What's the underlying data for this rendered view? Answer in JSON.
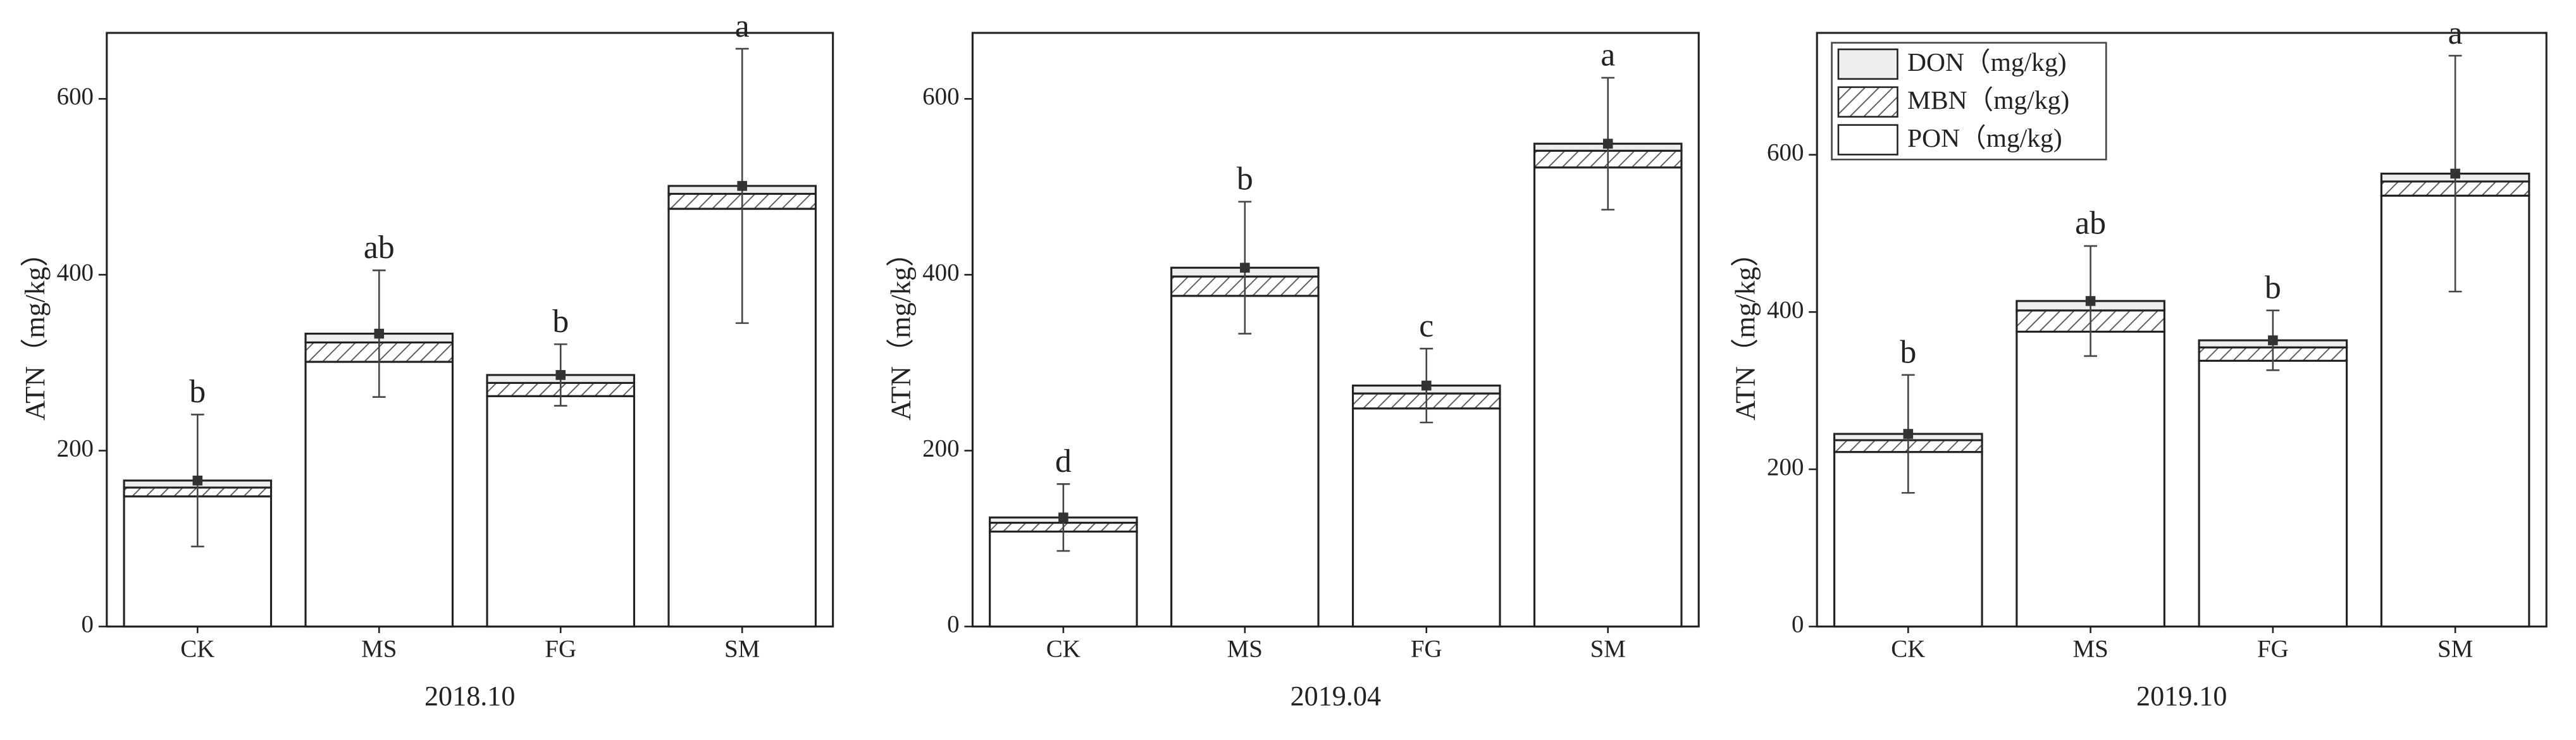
{
  "chart_data": [
    {
      "type": "bar",
      "stacked": true,
      "xlabel": "2018.10",
      "ylabel": "ATN（mg/kg）",
      "categories": [
        "CK",
        "MS",
        "FG",
        "SM"
      ],
      "series": [
        {
          "color": "#ffffff",
          "values": [
            148,
            301,
            262,
            475
          ]
        },
        {
          "color": "#555555",
          "pattern": "hatch",
          "values": [
            10,
            22,
            15,
            17
          ]
        },
        {
          "color": "#eeeeee",
          "values": [
            8,
            10,
            9,
            9
          ]
        }
      ],
      "errors": [
        75,
        72,
        35,
        156
      ],
      "annotations": [
        "b",
        "ab",
        "b",
        "a"
      ],
      "ylim": [
        0,
        675
      ],
      "yticks": [
        0,
        200,
        400,
        600
      ]
    },
    {
      "type": "bar",
      "stacked": true,
      "xlabel": "2019.04",
      "ylabel": "ATN（mg/kg）",
      "categories": [
        "CK",
        "MS",
        "FG",
        "SM"
      ],
      "series": [
        {
          "color": "#ffffff",
          "values": [
            108,
            376,
            248,
            522
          ]
        },
        {
          "color": "#555555",
          "pattern": "hatch",
          "values": [
            10,
            22,
            17,
            19
          ]
        },
        {
          "color": "#eeeeee",
          "values": [
            6,
            10,
            9,
            8
          ]
        }
      ],
      "errors": [
        38,
        75,
        42,
        75
      ],
      "annotations": [
        "d",
        "b",
        "c",
        "a"
      ],
      "ylim": [
        0,
        675
      ],
      "yticks": [
        0,
        200,
        400,
        600
      ]
    },
    {
      "type": "bar",
      "stacked": true,
      "xlabel": "2019.10",
      "ylabel": "ATN（mg/kg）",
      "categories": [
        "CK",
        "MS",
        "FG",
        "SM"
      ],
      "series": [
        {
          "name": "PON（mg/kg)",
          "color": "#ffffff",
          "values": [
            222,
            375,
            338,
            548
          ]
        },
        {
          "name": "MBN（mg/kg)",
          "color": "#555555",
          "pattern": "hatch",
          "values": [
            15,
            27,
            17,
            18
          ]
        },
        {
          "name": "DON（mg/kg)",
          "color": "#eeeeee",
          "values": [
            8,
            12,
            9,
            10
          ]
        }
      ],
      "errors": [
        75,
        70,
        38,
        150
      ],
      "annotations": [
        "b",
        "ab",
        "b",
        "a"
      ],
      "ylim": [
        0,
        755
      ],
      "yticks": [
        0,
        200,
        400,
        600
      ],
      "legend": "upper left"
    }
  ]
}
